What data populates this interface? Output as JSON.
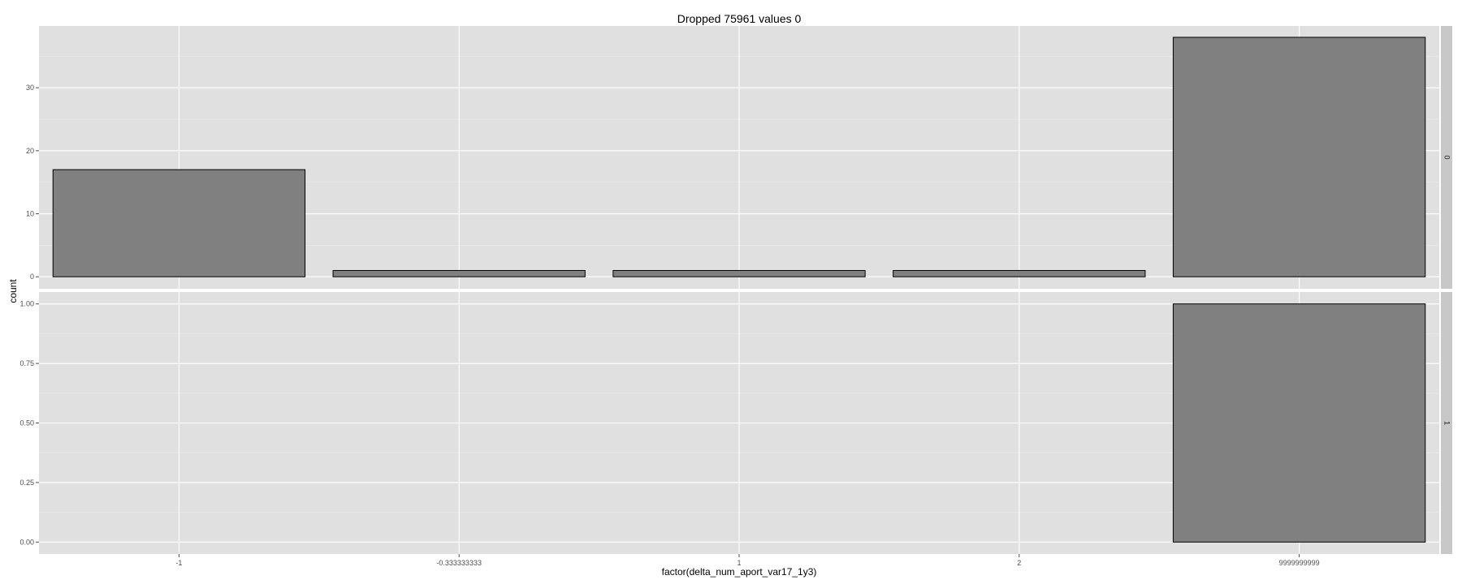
{
  "chart_data": {
    "type": "bar",
    "title": "Dropped 75961 values 0",
    "xlabel": "factor(delta_num_aport_var17_1y3)",
    "ylabel": "count",
    "categories": [
      "-1",
      "-0.333333333",
      "1",
      "2",
      "9999999999"
    ],
    "grid": true,
    "colors": {
      "panel": "#e0e0e0",
      "grid": "#ffffff",
      "bar_fill": "#808080",
      "bar_stroke": "#000000",
      "strip": "#c8c8c8",
      "tick": "#4d4d4d"
    },
    "facets": [
      {
        "strip": "0",
        "values": [
          17,
          1,
          1,
          1,
          38
        ],
        "ylim": [
          -1.9,
          39.8
        ],
        "yticks": [
          0,
          10,
          20,
          30
        ],
        "ytick_labels": [
          "0",
          "10",
          "20",
          "30"
        ]
      },
      {
        "strip": "1",
        "values": [
          0,
          0,
          0,
          0,
          1
        ],
        "ylim": [
          -0.05,
          1.05
        ],
        "yticks": [
          0,
          0.25,
          0.5,
          0.75,
          1
        ],
        "ytick_labels": [
          "0.00",
          "0.25",
          "0.50",
          "0.75",
          "1.00"
        ]
      }
    ]
  }
}
